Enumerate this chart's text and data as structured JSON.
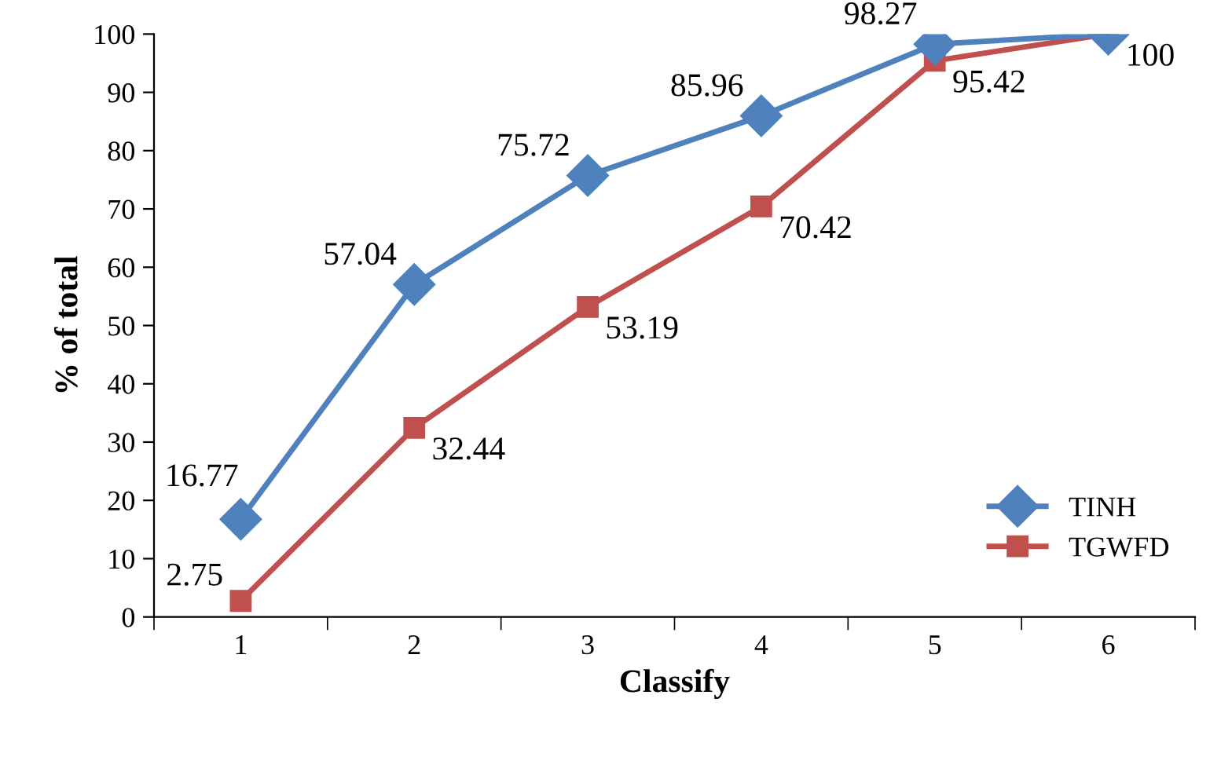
{
  "chart_data": {
    "type": "line",
    "xlabel": "Classify",
    "ylabel": "% of total",
    "categories": [
      "1",
      "2",
      "3",
      "4",
      "5",
      "6"
    ],
    "series": [
      {
        "name": "TINH",
        "color": "#4f81bd",
        "marker": "diamond",
        "values": [
          16.77,
          57.04,
          75.72,
          85.96,
          98.27,
          100
        ],
        "value_labels": [
          "16.77",
          "57.04",
          "75.72",
          "85.96",
          "98.27",
          null
        ]
      },
      {
        "name": "TGWFD",
        "color": "#c0504d",
        "marker": "square",
        "values": [
          2.75,
          32.44,
          53.19,
          70.42,
          95.42,
          100
        ],
        "value_labels": [
          "2.75",
          "32.44",
          "53.19",
          "70.42",
          "95.42",
          "100"
        ]
      }
    ],
    "ylim": [
      0,
      100
    ],
    "yticks": [
      0,
      10,
      20,
      30,
      40,
      50,
      60,
      70,
      80,
      90,
      100
    ],
    "grid": false,
    "legend": "bottom right",
    "line_style": "solid"
  }
}
